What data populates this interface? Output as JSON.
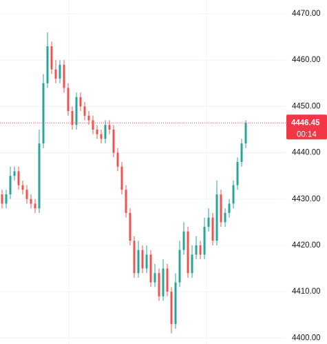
{
  "chart_data": {
    "type": "candlestick",
    "up_color": "#26a69a",
    "down_color": "#ef5350",
    "ylim": [
      4398.7,
      4472.98
    ],
    "yticks": [
      {
        "value": 4400,
        "label": "4400.00"
      },
      {
        "value": 4410,
        "label": "4410.00"
      },
      {
        "value": 4420,
        "label": "4420.00"
      },
      {
        "value": 4430,
        "label": "4430.00"
      },
      {
        "value": 4440,
        "label": "4440.00"
      },
      {
        "value": 4450,
        "label": "4450.00"
      },
      {
        "value": 4460,
        "label": "4460.00"
      },
      {
        "value": 4470,
        "label": "4470.00"
      }
    ],
    "grid": true,
    "open": [
      4431,
      4429,
      4431,
      4435,
      4436,
      4433,
      4432,
      4430,
      4429,
      4428,
      4442,
      4455,
      4463,
      4458,
      4456,
      4459,
      4454,
      4449,
      4446,
      4452,
      4450,
      4448,
      4447,
      4445,
      4444,
      4443,
      4446,
      4445,
      4440,
      4437,
      4432,
      4427,
      4421,
      4414,
      4419,
      4415,
      4418,
      4412,
      4414,
      4409,
      4415,
      4410,
      4403,
      4412,
      4419,
      4423,
      4414,
      4418,
      4420,
      4418,
      4424,
      4426,
      4421,
      4431,
      4425,
      4427,
      4429,
      4433,
      4438,
      4442
    ],
    "high": [
      4432,
      4432,
      4437,
      4437,
      4437,
      4434,
      4433,
      4431,
      4430,
      4445,
      4457,
      4466,
      4464,
      4460,
      4460,
      4460,
      4455,
      4450,
      4453,
      4453,
      4451,
      4449,
      4448,
      4446,
      4445,
      4447,
      4447,
      4446,
      4441,
      4438,
      4433,
      4428,
      4422,
      4421,
      4420,
      4420,
      4419,
      4416,
      4415,
      4417,
      4416,
      4411,
      4414,
      4421,
      4425,
      4424,
      4420,
      4422,
      4421,
      4426,
      4428,
      4427,
      4434,
      4432,
      4428,
      4430,
      4434,
      4439,
      4443,
      4447
    ],
    "low": [
      4428,
      4428,
      4430,
      4434,
      4432,
      4431,
      4429,
      4428,
      4427,
      4427,
      4441,
      4454,
      4457,
      4455,
      4455,
      4453,
      4448,
      4445,
      4445,
      4449,
      4447,
      4446,
      4444,
      4443,
      4442,
      4442,
      4444,
      4439,
      4436,
      4431,
      4426,
      4420,
      4413,
      4413,
      4414,
      4414,
      4411,
      4411,
      4408,
      4408,
      4409,
      4401,
      4402,
      4411,
      4418,
      4413,
      4413,
      4417,
      4417,
      4417,
      4423,
      4420,
      4420,
      4424,
      4424,
      4426,
      4428,
      4432,
      4437,
      4441
    ],
    "close": [
      4429,
      4431,
      4435,
      4436,
      4433,
      4432,
      4430,
      4429,
      4428,
      4442,
      4455,
      4463,
      4458,
      4456,
      4459,
      4454,
      4449,
      4446,
      4452,
      4450,
      4448,
      4447,
      4445,
      4444,
      4443,
      4446,
      4445,
      4440,
      4437,
      4432,
      4427,
      4421,
      4414,
      4419,
      4415,
      4418,
      4412,
      4414,
      4409,
      4415,
      4410,
      4403,
      4412,
      4419,
      4423,
      4414,
      4418,
      4420,
      4418,
      4424,
      4426,
      4421,
      4431,
      4425,
      4427,
      4429,
      4433,
      4438,
      4442,
      4446.45
    ],
    "last_price": 4446.45,
    "countdown": "00:14"
  }
}
